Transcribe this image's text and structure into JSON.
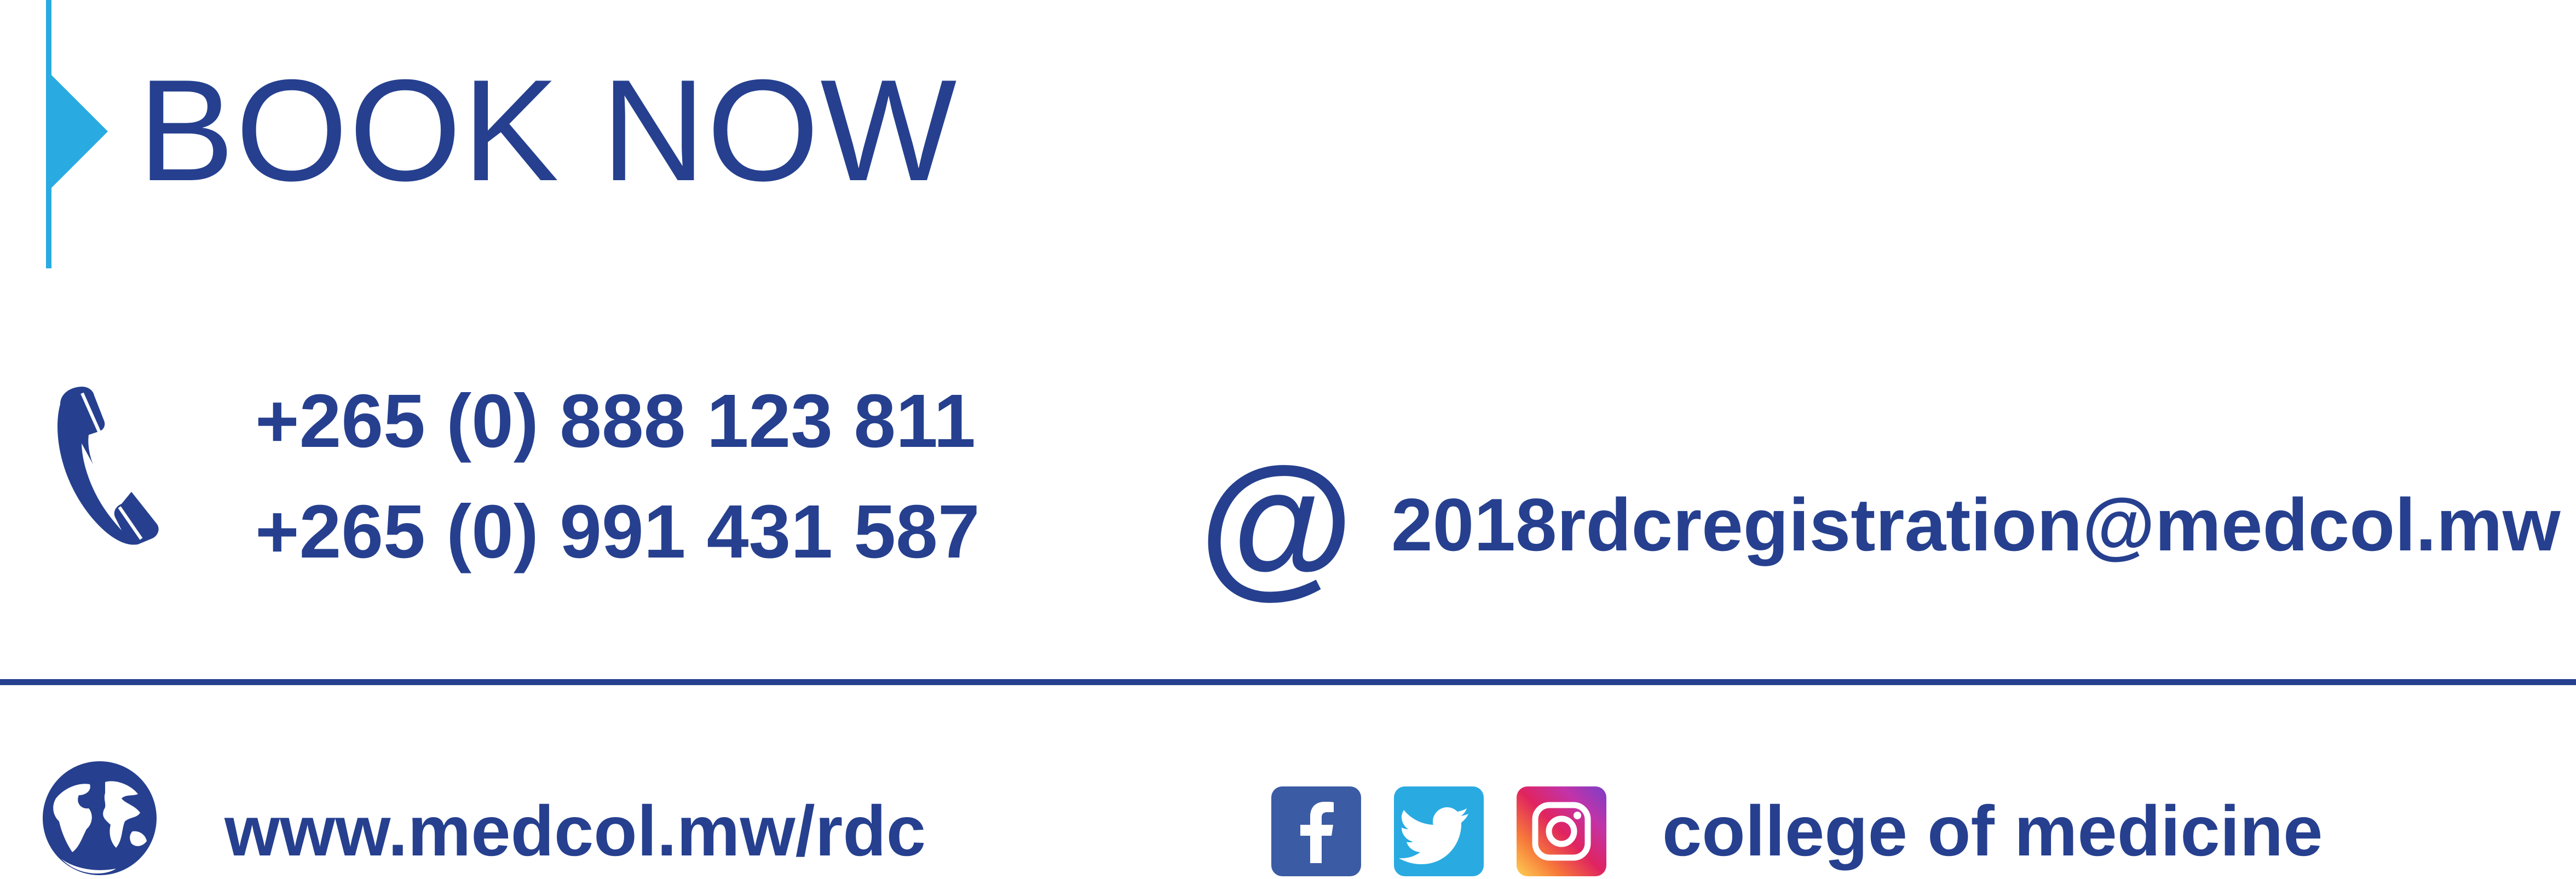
{
  "header": {
    "title": "BOOK NOW"
  },
  "contact": {
    "phones": [
      "+265 (0) 888 123 811",
      "+265 (0) 991 431 587"
    ],
    "email_symbol": "@",
    "email": "2018rdcregistration@medcol.mw"
  },
  "footer": {
    "website": "www.medcol.mw/rdc",
    "social_handle": "college of medicine",
    "social_icons": [
      "facebook-icon",
      "twitter-icon",
      "instagram-icon"
    ]
  },
  "colors": {
    "brand_blue": "#26408f",
    "accent_cyan": "#29abe2",
    "facebook_blue": "#3b5ba4",
    "twitter_blue": "#29abe2"
  },
  "icons": {
    "phone": "phone-icon",
    "email": "at-sign-icon",
    "globe": "globe-icon"
  }
}
